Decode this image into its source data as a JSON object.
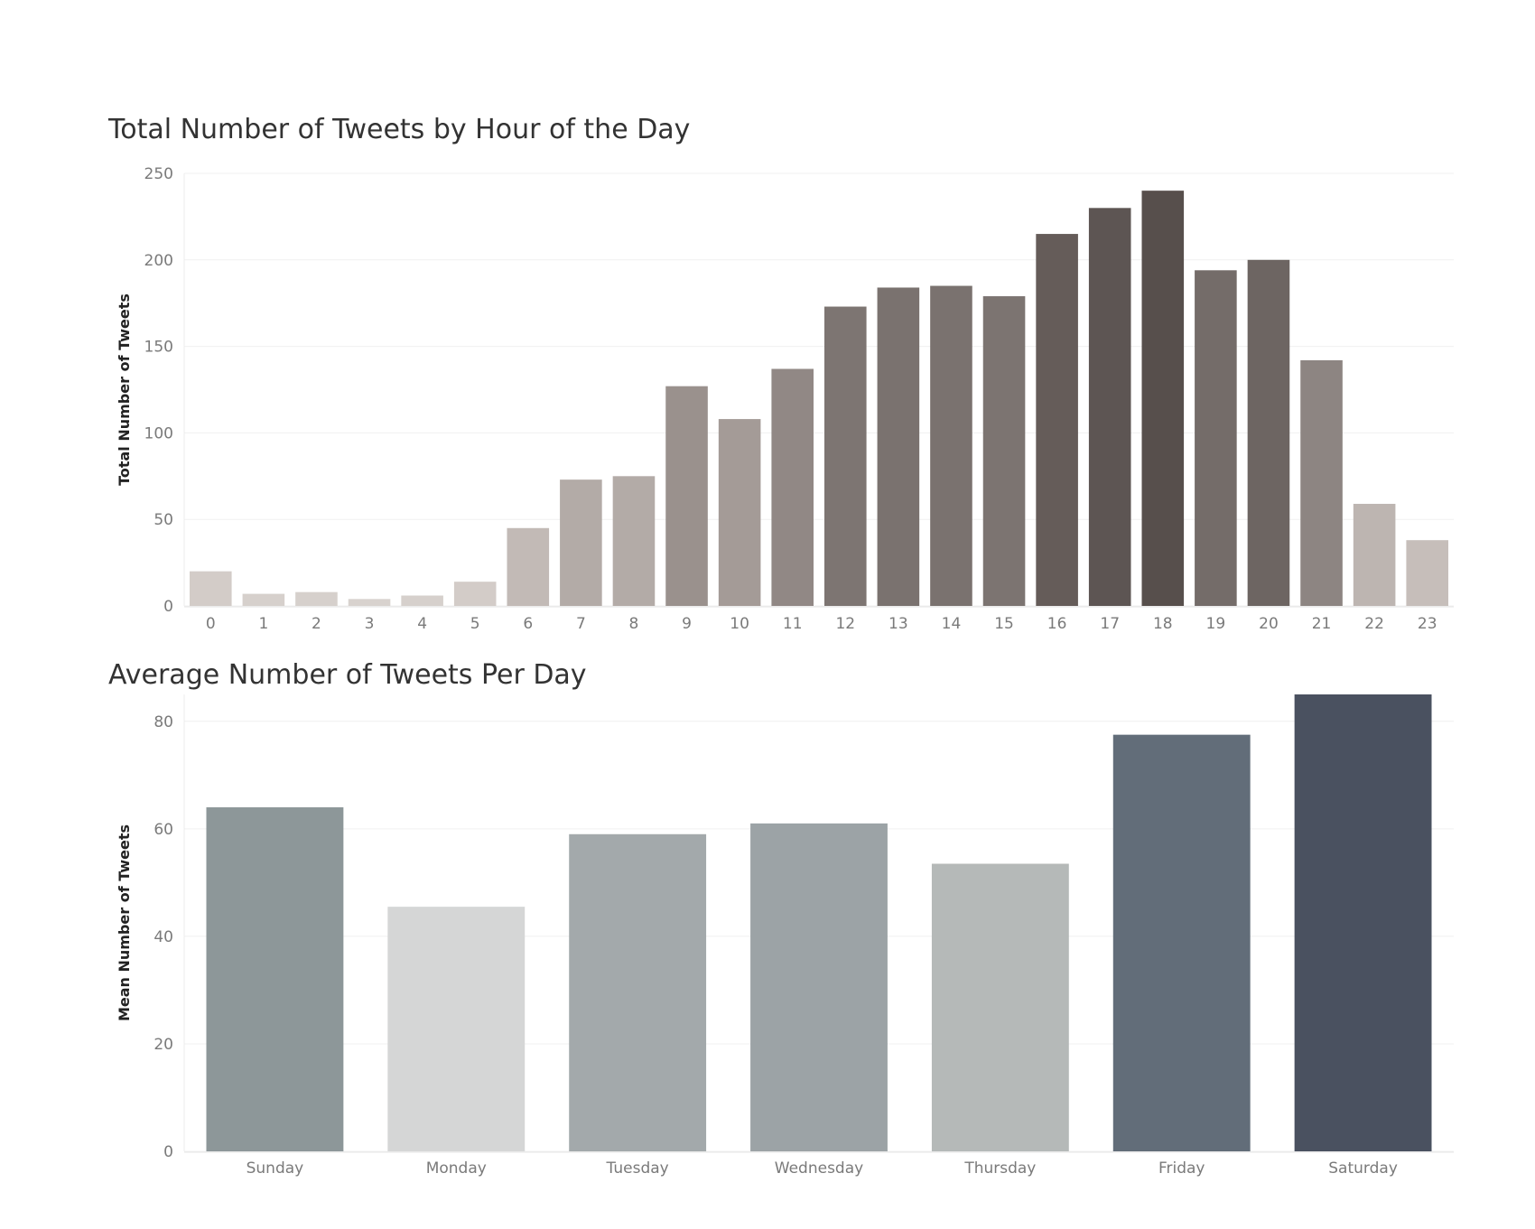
{
  "chart_data": [
    {
      "type": "bar",
      "title": "Total Number of Tweets by Hour of the Day",
      "xlabel": "",
      "ylabel": "Total Number of Tweets",
      "ylim": [
        0,
        250
      ],
      "yticks": [
        0,
        50,
        100,
        150,
        200,
        250
      ],
      "grid": true,
      "legend": "none",
      "categories": [
        "0",
        "1",
        "2",
        "3",
        "4",
        "5",
        "6",
        "7",
        "8",
        "9",
        "10",
        "11",
        "12",
        "13",
        "14",
        "15",
        "16",
        "17",
        "18",
        "19",
        "20",
        "21",
        "22",
        "23"
      ],
      "values": [
        20,
        7,
        8,
        4,
        6,
        14,
        45,
        73,
        75,
        127,
        108,
        137,
        173,
        184,
        185,
        179,
        215,
        230,
        240,
        194,
        200,
        142,
        59,
        38
      ],
      "colors": [
        "#d3ccc8",
        "#d6d0cc",
        "#d6d0cc",
        "#d8d2ce",
        "#d6d0cc",
        "#d3ccc8",
        "#c2bab6",
        "#b3aba7",
        "#b3aba7",
        "#9a918d",
        "#a49b97",
        "#918885",
        "#7d7572",
        "#7a726f",
        "#7a726f",
        "#7c7471",
        "#655c59",
        "#5d5553",
        "#574f4c",
        "#746c69",
        "#6d6562",
        "#8d8582",
        "#bdb5b1",
        "#c6beba"
      ]
    },
    {
      "type": "bar",
      "title": "Average Number of Tweets Per Day",
      "xlabel": "",
      "ylabel": "Mean Number of Tweets",
      "ylim": [
        0,
        85
      ],
      "yticks": [
        0,
        20,
        40,
        60,
        80
      ],
      "grid": true,
      "legend": "none",
      "categories": [
        "Sunday",
        "Monday",
        "Tuesday",
        "Wednesday",
        "Thursday",
        "Friday",
        "Saturday"
      ],
      "values": [
        64,
        45.5,
        59,
        61,
        53.5,
        77.5,
        85
      ],
      "colors": [
        "#8d9799",
        "#d5d6d6",
        "#a3a9ab",
        "#9ca3a6",
        "#b5b9b8",
        "#626d79",
        "#4a5160"
      ]
    }
  ]
}
